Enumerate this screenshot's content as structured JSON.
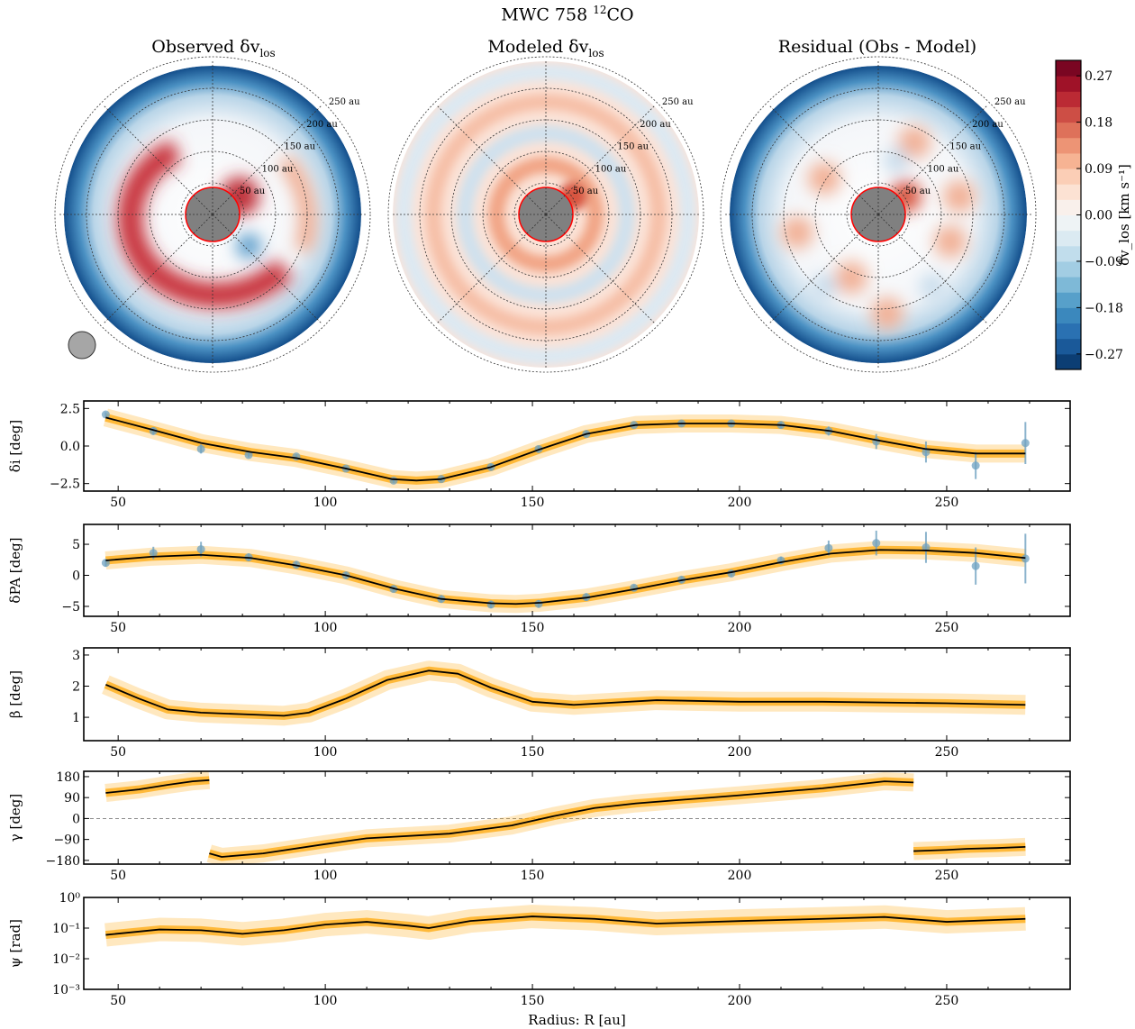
{
  "title": {
    "main": "MWC 758 ",
    "sup": "12",
    "suffix": "CO"
  },
  "maps": [
    {
      "title_prefix": "Observed δv",
      "title_sub": "los",
      "kind": "observed"
    },
    {
      "title_prefix": "Modeled δv",
      "title_sub": "los",
      "kind": "modeled"
    },
    {
      "title_prefix": "Residual (Obs - Model)",
      "title_sub": "",
      "kind": "residual"
    }
  ],
  "ring_labels": [
    "50 au",
    "100 au",
    "150 au",
    "200 au",
    "250 au"
  ],
  "colorbar": {
    "label": "δv_los [km s⁻¹]",
    "range": [
      -0.3,
      0.3
    ],
    "ticks": [
      "0.27",
      "0.18",
      "0.09",
      "0.00",
      "−0.09",
      "−0.18",
      "−0.27"
    ],
    "tick_values": [
      0.27,
      0.18,
      0.09,
      0.0,
      -0.09,
      -0.18,
      -0.27
    ],
    "colormap": "RdBu_r",
    "levels": 20
  },
  "colors": {
    "model_line": "#000000",
    "posterior": "#ffa500",
    "points": "#6fa1c0",
    "center_outline": "#ff0000",
    "center_fill": "#808080"
  },
  "chart_data": [
    {
      "type": "line",
      "ylabel": "δi [deg]",
      "xlim": [
        41.7,
        279.8
      ],
      "ylim": [
        -3,
        3
      ],
      "yticks": [
        2.5,
        0.0,
        -2.5
      ],
      "ytick_labels": [
        "2.5",
        "0.0",
        "−2.5"
      ],
      "xticks": [
        50,
        100,
        150,
        200,
        250
      ],
      "points": {
        "x": [
          47,
          58.5,
          70,
          81.5,
          93,
          105,
          116.5,
          128,
          140,
          151.5,
          163,
          174.5,
          186,
          198,
          210,
          221.5,
          233,
          245,
          257,
          269
        ],
        "y": [
          2.1,
          1.0,
          -0.2,
          -0.6,
          -0.7,
          -1.5,
          -2.3,
          -2.2,
          -1.4,
          -0.2,
          0.8,
          1.4,
          1.5,
          1.5,
          1.4,
          1.0,
          0.3,
          -0.4,
          -1.3,
          0.2
        ],
        "err": [
          0.15,
          0.25,
          0.3,
          0.15,
          0.15,
          0.15,
          0.15,
          0.15,
          0.2,
          0.2,
          0.2,
          0.15,
          0.15,
          0.15,
          0.2,
          0.3,
          0.5,
          0.7,
          0.9,
          1.4
        ]
      },
      "model": {
        "x": [
          47,
          58,
          70,
          82,
          93,
          105,
          116,
          122,
          128,
          140,
          152,
          163,
          175,
          186,
          198,
          210,
          222,
          233,
          245,
          257,
          269
        ],
        "y": [
          1.9,
          1.1,
          0.2,
          -0.4,
          -0.8,
          -1.5,
          -2.2,
          -2.3,
          -2.2,
          -1.4,
          -0.2,
          0.8,
          1.4,
          1.5,
          1.5,
          1.4,
          1.0,
          0.4,
          -0.2,
          -0.5,
          -0.5
        ]
      }
    },
    {
      "type": "line",
      "ylabel": "δPA [deg]",
      "xlim": [
        41.7,
        279.8
      ],
      "ylim": [
        -6.6,
        8.2
      ],
      "yticks": [
        5,
        0,
        -5
      ],
      "ytick_labels": [
        "5",
        "0",
        "−5"
      ],
      "xticks": [
        50,
        100,
        150,
        200,
        250
      ],
      "points": {
        "x": [
          47,
          58.5,
          70,
          81.5,
          93,
          105,
          116.5,
          128,
          140,
          151.5,
          163,
          174.5,
          186,
          198,
          210,
          221.5,
          233,
          245,
          257,
          269
        ],
        "y": [
          2.0,
          3.6,
          4.2,
          2.9,
          1.7,
          0.0,
          -2.2,
          -3.8,
          -4.7,
          -4.6,
          -3.5,
          -2.0,
          -0.7,
          0.3,
          2.4,
          4.4,
          5.2,
          4.5,
          1.5,
          2.7
        ],
        "err": [
          0.6,
          1.0,
          1.2,
          0.6,
          0.5,
          0.5,
          0.5,
          0.6,
          0.6,
          0.6,
          0.6,
          0.5,
          0.5,
          0.5,
          0.6,
          1.2,
          2.0,
          2.5,
          3.0,
          4.0
        ]
      },
      "model": {
        "x": [
          47,
          58,
          70,
          82,
          93,
          105,
          117,
          128,
          140,
          146,
          152,
          163,
          175,
          186,
          198,
          210,
          222,
          234,
          245,
          257,
          269
        ],
        "y": [
          2.4,
          3.0,
          3.3,
          2.8,
          1.6,
          0.0,
          -2.2,
          -3.8,
          -4.5,
          -4.6,
          -4.4,
          -3.6,
          -2.2,
          -0.8,
          0.5,
          2.1,
          3.5,
          4.1,
          4.0,
          3.6,
          2.8
        ]
      }
    },
    {
      "type": "line",
      "ylabel": "β [deg]",
      "xlim": [
        41.7,
        279.8
      ],
      "ylim": [
        0.25,
        3.23
      ],
      "yticks": [
        3,
        2,
        1
      ],
      "ytick_labels": [
        "3",
        "2",
        "1"
      ],
      "xticks": [
        50,
        100,
        150,
        200,
        250
      ],
      "model": {
        "x": [
          47,
          55,
          62,
          70,
          80,
          90,
          96,
          105,
          115,
          125,
          132,
          140,
          150,
          160,
          180,
          200,
          220,
          250,
          269
        ],
        "y": [
          2.05,
          1.6,
          1.25,
          1.15,
          1.1,
          1.05,
          1.15,
          1.6,
          2.2,
          2.5,
          2.4,
          1.95,
          1.5,
          1.4,
          1.55,
          1.5,
          1.5,
          1.45,
          1.4
        ]
      }
    },
    {
      "type": "line",
      "ylabel": "γ [deg]",
      "xlim": [
        41.7,
        279.8
      ],
      "ylim": [
        -196,
        203
      ],
      "yticks": [
        180,
        90,
        0,
        -90,
        -180
      ],
      "ytick_labels": [
        "180",
        "90",
        "0",
        "−90",
        "−180"
      ],
      "xticks": [
        50,
        100,
        150,
        200,
        250
      ],
      "hline": 0,
      "model_segments": [
        {
          "x": [
            47,
            55,
            62,
            68,
            72
          ],
          "y": [
            110,
            125,
            145,
            160,
            165
          ]
        },
        {
          "x": [
            72,
            75,
            85,
            100,
            110,
            130,
            145,
            155,
            165,
            175,
            200,
            220,
            235,
            242
          ],
          "y": [
            -150,
            -165,
            -150,
            -110,
            -85,
            -65,
            -30,
            10,
            45,
            65,
            100,
            130,
            160,
            155
          ]
        },
        {
          "x": [
            242,
            250,
            255,
            262,
            269
          ],
          "y": [
            -140,
            -135,
            -130,
            -127,
            -122
          ]
        }
      ]
    },
    {
      "type": "line",
      "ylabel": "ψ [rad]",
      "xlabel": "Radius: R [au]",
      "yscale": "log",
      "xlim": [
        41.7,
        279.8
      ],
      "ylim": [
        0.001,
        1
      ],
      "yticks": [
        1,
        0.1,
        0.01,
        0.001
      ],
      "ytick_labels": [
        "10⁰",
        "10⁻¹",
        "10⁻²",
        "10⁻³"
      ],
      "xticks": [
        50,
        100,
        150,
        200,
        250
      ],
      "model": {
        "x": [
          47,
          60,
          70,
          80,
          90,
          100,
          110,
          120,
          125,
          135,
          150,
          165,
          180,
          200,
          220,
          235,
          250,
          269
        ],
        "y": [
          0.06,
          0.09,
          0.085,
          0.065,
          0.085,
          0.13,
          0.16,
          0.12,
          0.1,
          0.17,
          0.24,
          0.2,
          0.14,
          0.17,
          0.2,
          0.23,
          0.16,
          0.2
        ]
      }
    }
  ]
}
